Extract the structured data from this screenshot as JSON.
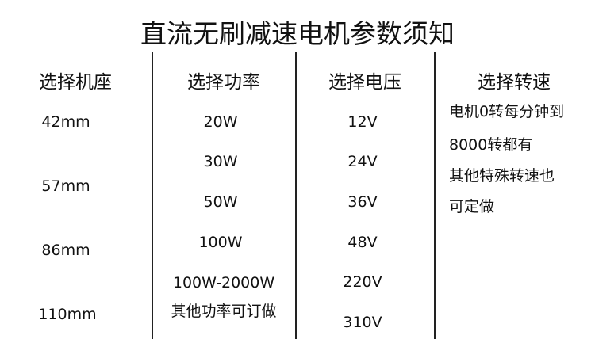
{
  "title": "直流无刷减速电机参数须知",
  "columns": [
    {
      "header": "选择机座",
      "items": [
        "42mm",
        "57mm",
        "86mm",
        "110mm"
      ]
    },
    {
      "header": "选择功率",
      "items": [
        "20W",
        "30W",
        "50W",
        "100W",
        "100W-2000W",
        "其他功率可订做"
      ]
    },
    {
      "header": "选择电压",
      "items": [
        "12V",
        "24V",
        "36V",
        "48V",
        "220V",
        "310V"
      ]
    },
    {
      "header": "选择转速",
      "items": [
        "电机0转每分钟到",
        "8000转都有",
        "其他特殊转速也",
        "可定做"
      ]
    }
  ]
}
